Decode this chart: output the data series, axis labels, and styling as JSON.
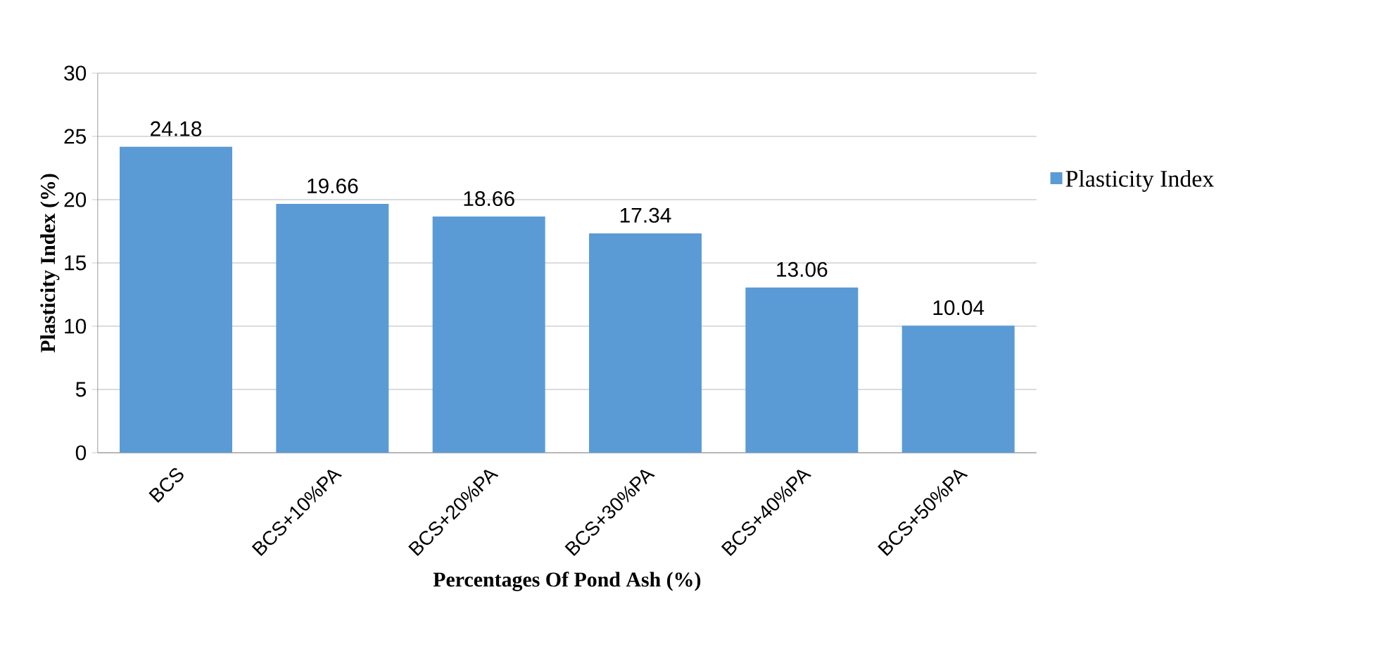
{
  "chart_data": {
    "type": "bar",
    "xlabel": "Percentages Of Pond Ash (%)",
    "ylabel": "Plasticity Index (%)",
    "categories": [
      "BCS",
      "BCS+10%PA",
      "BCS+20%PA",
      "BCS+30%PA",
      "BCS+40%PA",
      "BCS+50%PA"
    ],
    "series": [
      {
        "name": "Plasticity Index",
        "color": "#5b9bd5",
        "values": [
          24.18,
          19.66,
          18.66,
          17.34,
          13.06,
          10.04
        ]
      }
    ],
    "ylim": [
      0,
      30
    ],
    "yticks": [
      0,
      5,
      10,
      15,
      20,
      25,
      30
    ],
    "grid": "y",
    "legend": "right",
    "data_labels": true
  }
}
